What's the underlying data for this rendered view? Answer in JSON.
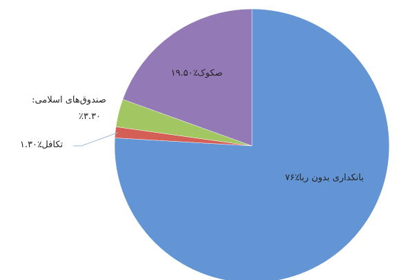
{
  "chart_data": {
    "type": "pie",
    "categories": [
      "بانکداری بدون ربا:",
      "تکافل:",
      "صندوق‌های اسلامی:",
      "صکوک:"
    ],
    "values": [
      76,
      1.3,
      3.3,
      19.5
    ],
    "value_labels": [
      "٪۷۶",
      "٪۱.۳۰",
      "٪۳.۳۰",
      "٪۱۹.۵۰"
    ],
    "colors": [
      "#5b8fd2",
      "#d2574f",
      "#9cc35a",
      "#8e72b2"
    ]
  }
}
